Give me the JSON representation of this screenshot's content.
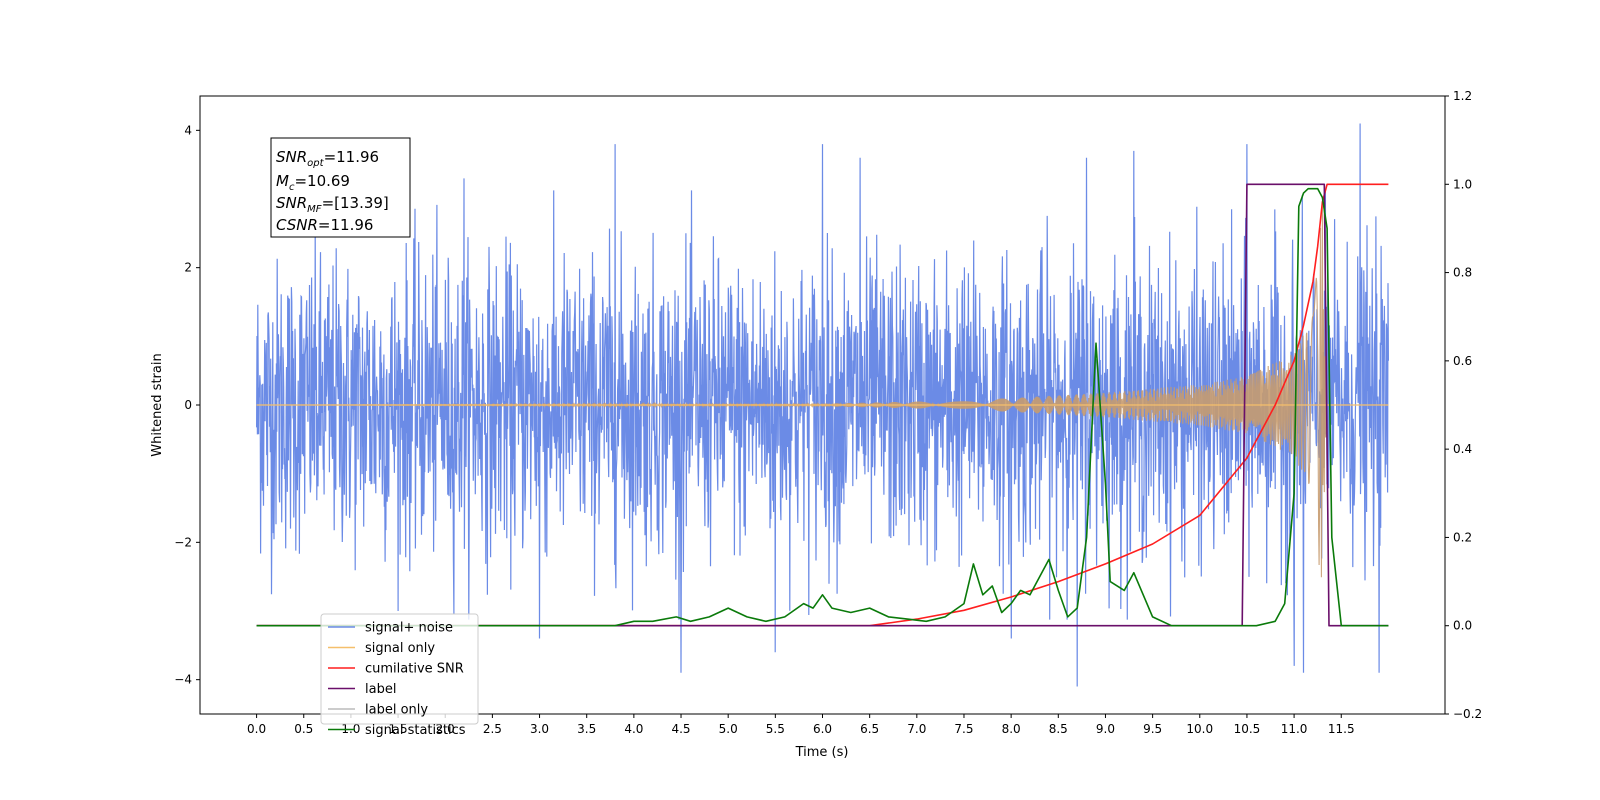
{
  "chart_data": {
    "type": "line",
    "xlabel": "Time (s)",
    "ylabel": "Whitened strain",
    "xlim": [
      -0.6,
      12.6
    ],
    "ylim": [
      -4.5,
      4.5
    ],
    "y2lim": [
      -0.2,
      1.2
    ],
    "x_ticks": [
      "0.0",
      "0.5",
      "1.0",
      "1.5",
      "2.0",
      "2.5",
      "3.0",
      "3.5",
      "4.0",
      "4.5",
      "5.0",
      "5.5",
      "6.0",
      "6.5",
      "7.0",
      "7.5",
      "8.0",
      "8.5",
      "9.0",
      "9.5",
      "10.0",
      "10.5",
      "11.0",
      "11.5"
    ],
    "y_ticks": [
      "4",
      "2",
      "0",
      "−2",
      "−4"
    ],
    "y2_ticks": [
      "1.2",
      "1.0",
      "0.8",
      "0.6",
      "0.4",
      "0.2",
      "0.0",
      "−0.2"
    ],
    "annotation": {
      "snr_opt": {
        "sym": "SNR",
        "sub": "opt",
        "val": "=11.96"
      },
      "mc": {
        "sym": "M",
        "sub": "c",
        "val": "=10.69"
      },
      "snr_mf": {
        "sym": "SNR",
        "sub": "MF",
        "val": "=[13.39]"
      },
      "csnr": {
        "sym": "CSNR",
        "val": "=11.96"
      }
    },
    "legend_position": "lower-left",
    "series": [
      {
        "name": "signal+ noise",
        "color": "#6b8be6",
        "axis": "left",
        "description": "whitened noise plus signal, amplitude roughly within ±2.5 with peaks up to ±4",
        "x_range": [
          0.0,
          12.0
        ],
        "envelope": 2.5,
        "spikes": [
          [
            1.5,
            3.3
          ],
          [
            2.2,
            3.3
          ],
          [
            3.8,
            3.8
          ],
          [
            6.0,
            3.8
          ],
          [
            6.4,
            3.6
          ],
          [
            8.8,
            3.6
          ],
          [
            9.3,
            3.7
          ],
          [
            10.5,
            3.8
          ],
          [
            11.7,
            4.1
          ],
          [
            4.5,
            -3.9
          ],
          [
            5.5,
            -3.6
          ],
          [
            8.7,
            -4.1
          ],
          [
            11.0,
            -3.8
          ],
          [
            11.1,
            -3.9
          ],
          [
            11.9,
            -3.9
          ],
          [
            3.0,
            -3.4
          ],
          [
            8.0,
            -3.4
          ],
          [
            1.5,
            -3.0
          ]
        ]
      },
      {
        "name": "signal only",
        "color": "#f5bf6b",
        "axis": "left",
        "description": "chirp signal, amplitude grows from ~0 to ~2.9 and ends near 11.35 s",
        "x": [
          0.0,
          6.0,
          7.0,
          8.0,
          9.0,
          10.0,
          10.5,
          11.0,
          11.2,
          11.3,
          11.35
        ],
        "amplitude": [
          0.0,
          0.02,
          0.05,
          0.1,
          0.18,
          0.3,
          0.42,
          0.75,
          1.3,
          2.9,
          0.0
        ]
      },
      {
        "name": "cumilative SNR",
        "color": "#ff1f1f",
        "axis": "right",
        "x": [
          0.0,
          6.5,
          7.0,
          7.5,
          8.0,
          8.5,
          9.0,
          9.5,
          10.0,
          10.5,
          10.8,
          11.0,
          11.1,
          11.2,
          11.25,
          11.3,
          11.35,
          12.0
        ],
        "y": [
          0.0,
          0.0,
          0.015,
          0.035,
          0.065,
          0.1,
          0.14,
          0.185,
          0.25,
          0.38,
          0.5,
          0.6,
          0.68,
          0.78,
          0.86,
          0.96,
          1.0,
          1.0
        ]
      },
      {
        "name": "label",
        "color": "#6a0f6a",
        "axis": "right",
        "x": [
          0.0,
          10.45,
          10.5,
          11.32,
          11.37,
          12.0
        ],
        "y": [
          0.0,
          0.0,
          1.0,
          1.0,
          0.0,
          0.0
        ]
      },
      {
        "name": "label only",
        "color": "#bbbbbb",
        "axis": "right",
        "legend_only": true
      },
      {
        "name": "signal statistics",
        "color": "#0a7a0a",
        "axis": "right",
        "x": [
          0.0,
          1.0,
          2.0,
          3.0,
          3.8,
          4.0,
          4.2,
          4.45,
          4.6,
          4.8,
          5.0,
          5.2,
          5.4,
          5.6,
          5.8,
          5.9,
          6.0,
          6.1,
          6.3,
          6.5,
          6.7,
          6.9,
          7.1,
          7.3,
          7.5,
          7.6,
          7.7,
          7.8,
          7.9,
          8.0,
          8.1,
          8.2,
          8.4,
          8.5,
          8.6,
          8.7,
          8.8,
          8.9,
          9.0,
          9.05,
          9.2,
          9.3,
          9.4,
          9.5,
          9.7,
          10.0,
          10.45,
          10.6,
          10.8,
          10.9,
          11.0,
          11.05,
          11.1,
          11.15,
          11.25,
          11.3,
          11.35,
          11.4,
          11.5,
          12.0
        ],
        "y": [
          0.0,
          0.0,
          0.0,
          0.0,
          0.0,
          0.01,
          0.01,
          0.02,
          0.01,
          0.02,
          0.04,
          0.02,
          0.01,
          0.02,
          0.05,
          0.04,
          0.07,
          0.04,
          0.03,
          0.04,
          0.02,
          0.015,
          0.01,
          0.02,
          0.05,
          0.14,
          0.07,
          0.09,
          0.03,
          0.05,
          0.08,
          0.07,
          0.15,
          0.08,
          0.02,
          0.04,
          0.2,
          0.64,
          0.32,
          0.1,
          0.08,
          0.12,
          0.07,
          0.02,
          0.0,
          0.0,
          0.0,
          0.0,
          0.01,
          0.05,
          0.3,
          0.95,
          0.98,
          0.99,
          0.99,
          0.97,
          0.9,
          0.2,
          0.0,
          0.0
        ]
      }
    ]
  }
}
